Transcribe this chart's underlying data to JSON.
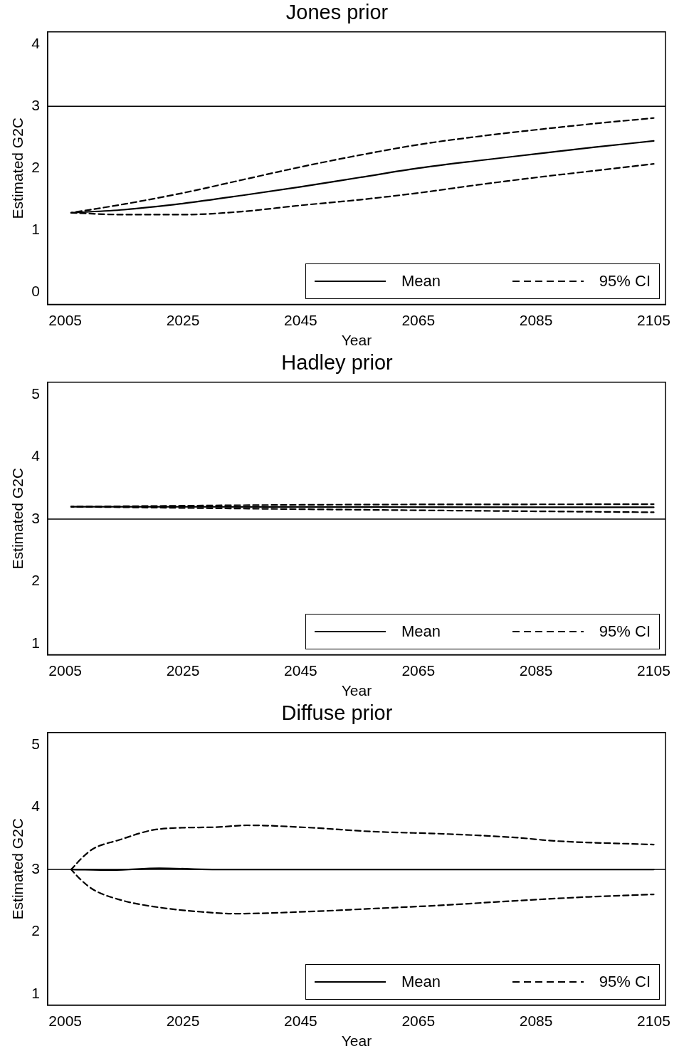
{
  "chart_data": [
    {
      "type": "line",
      "title": "Jones prior",
      "xlabel": "Year",
      "ylabel": "Estimated G2C",
      "xlim": [
        2002,
        2107
      ],
      "ylim": [
        -0.2,
        4.2
      ],
      "xticks": [
        2005,
        2025,
        2045,
        2065,
        2085,
        2105
      ],
      "yticks": [
        0,
        1,
        2,
        3,
        4
      ],
      "grid": false,
      "legend": "bottom right",
      "marker": "none",
      "ref_lines": [
        {
          "axis": "y",
          "value": 3,
          "color": "#000000"
        }
      ],
      "series": [
        {
          "name": "Mean",
          "color": "#000000",
          "line_style": "solid",
          "x": [
            2006,
            2015,
            2025,
            2035,
            2045,
            2055,
            2065,
            2075,
            2085,
            2095,
            2105
          ],
          "values": [
            1.28,
            1.33,
            1.43,
            1.56,
            1.7,
            1.85,
            2.0,
            2.12,
            2.23,
            2.34,
            2.44
          ]
        },
        {
          "name": "95% CI",
          "color": "#000000",
          "line_style": "dashed",
          "x": [
            2006,
            2015,
            2025,
            2035,
            2045,
            2055,
            2065,
            2075,
            2085,
            2095,
            2105
          ],
          "values": [
            1.28,
            1.42,
            1.6,
            1.81,
            2.02,
            2.21,
            2.38,
            2.51,
            2.62,
            2.72,
            2.81
          ]
        },
        {
          "color": "#000000",
          "line_style": "dashed",
          "x": [
            2006,
            2015,
            2025,
            2035,
            2045,
            2055,
            2065,
            2075,
            2085,
            2095,
            2105
          ],
          "values": [
            1.28,
            1.25,
            1.25,
            1.3,
            1.4,
            1.49,
            1.6,
            1.73,
            1.85,
            1.96,
            2.07
          ]
        }
      ]
    },
    {
      "type": "line",
      "title": "Hadley prior",
      "xlabel": "Year",
      "ylabel": "Estimated G2C",
      "xlim": [
        2002,
        2107
      ],
      "ylim": [
        0.82,
        5.2
      ],
      "xticks": [
        2005,
        2025,
        2045,
        2065,
        2085,
        2105
      ],
      "yticks": [
        1,
        2,
        3,
        4,
        5
      ],
      "grid": false,
      "legend": "bottom right",
      "marker": "none",
      "ref_lines": [
        {
          "axis": "y",
          "value": 3,
          "color": "#000000"
        }
      ],
      "series": [
        {
          "name": "Mean",
          "color": "#000000",
          "line_style": "solid",
          "x": [
            2006,
            2105
          ],
          "values": [
            3.2,
            3.19
          ]
        },
        {
          "name": "95% CI",
          "color": "#000000",
          "line_style": "dashed",
          "x": [
            2006,
            2045,
            2105
          ],
          "values": [
            3.2,
            3.23,
            3.24
          ]
        },
        {
          "color": "#000000",
          "line_style": "dashed",
          "x": [
            2006,
            2045,
            2105
          ],
          "values": [
            3.2,
            3.16,
            3.11
          ]
        }
      ]
    },
    {
      "type": "line",
      "title": "Diffuse prior",
      "xlabel": "Year",
      "ylabel": "Estimated G2C",
      "xlim": [
        2002,
        2107
      ],
      "ylim": [
        0.82,
        5.2
      ],
      "xticks": [
        2005,
        2025,
        2045,
        2065,
        2085,
        2105
      ],
      "yticks": [
        1,
        2,
        3,
        4,
        5
      ],
      "grid": false,
      "legend": "bottom right",
      "marker": "none",
      "ref_lines": [
        {
          "axis": "y",
          "value": 3,
          "color": "#000000"
        }
      ],
      "series": [
        {
          "name": "Mean",
          "color": "#000000",
          "line_style": "solid",
          "x": [
            2006,
            2013,
            2021,
            2030,
            2045,
            2065,
            2085,
            2105
          ],
          "values": [
            3.0,
            2.99,
            3.02,
            3.0,
            3.0,
            3.0,
            3.0,
            3.0
          ]
        },
        {
          "name": "95% CI",
          "color": "#000000",
          "line_style": "dashed",
          "x": [
            2006,
            2008,
            2009.7,
            2014,
            2021,
            2030.5,
            2036,
            2047,
            2057,
            2070,
            2082,
            2088,
            2105
          ],
          "values": [
            3.0,
            3.2,
            3.33,
            3.47,
            3.65,
            3.68,
            3.71,
            3.67,
            3.61,
            3.57,
            3.51,
            3.46,
            3.4
          ]
        },
        {
          "color": "#000000",
          "line_style": "dashed",
          "x": [
            2006,
            2007.7,
            2009.7,
            2014.4,
            2021,
            2028,
            2034,
            2048,
            2057,
            2068,
            2082,
            2094,
            2105
          ],
          "values": [
            3.0,
            2.83,
            2.68,
            2.51,
            2.39,
            2.32,
            2.29,
            2.33,
            2.37,
            2.42,
            2.5,
            2.56,
            2.6
          ]
        }
      ]
    }
  ]
}
